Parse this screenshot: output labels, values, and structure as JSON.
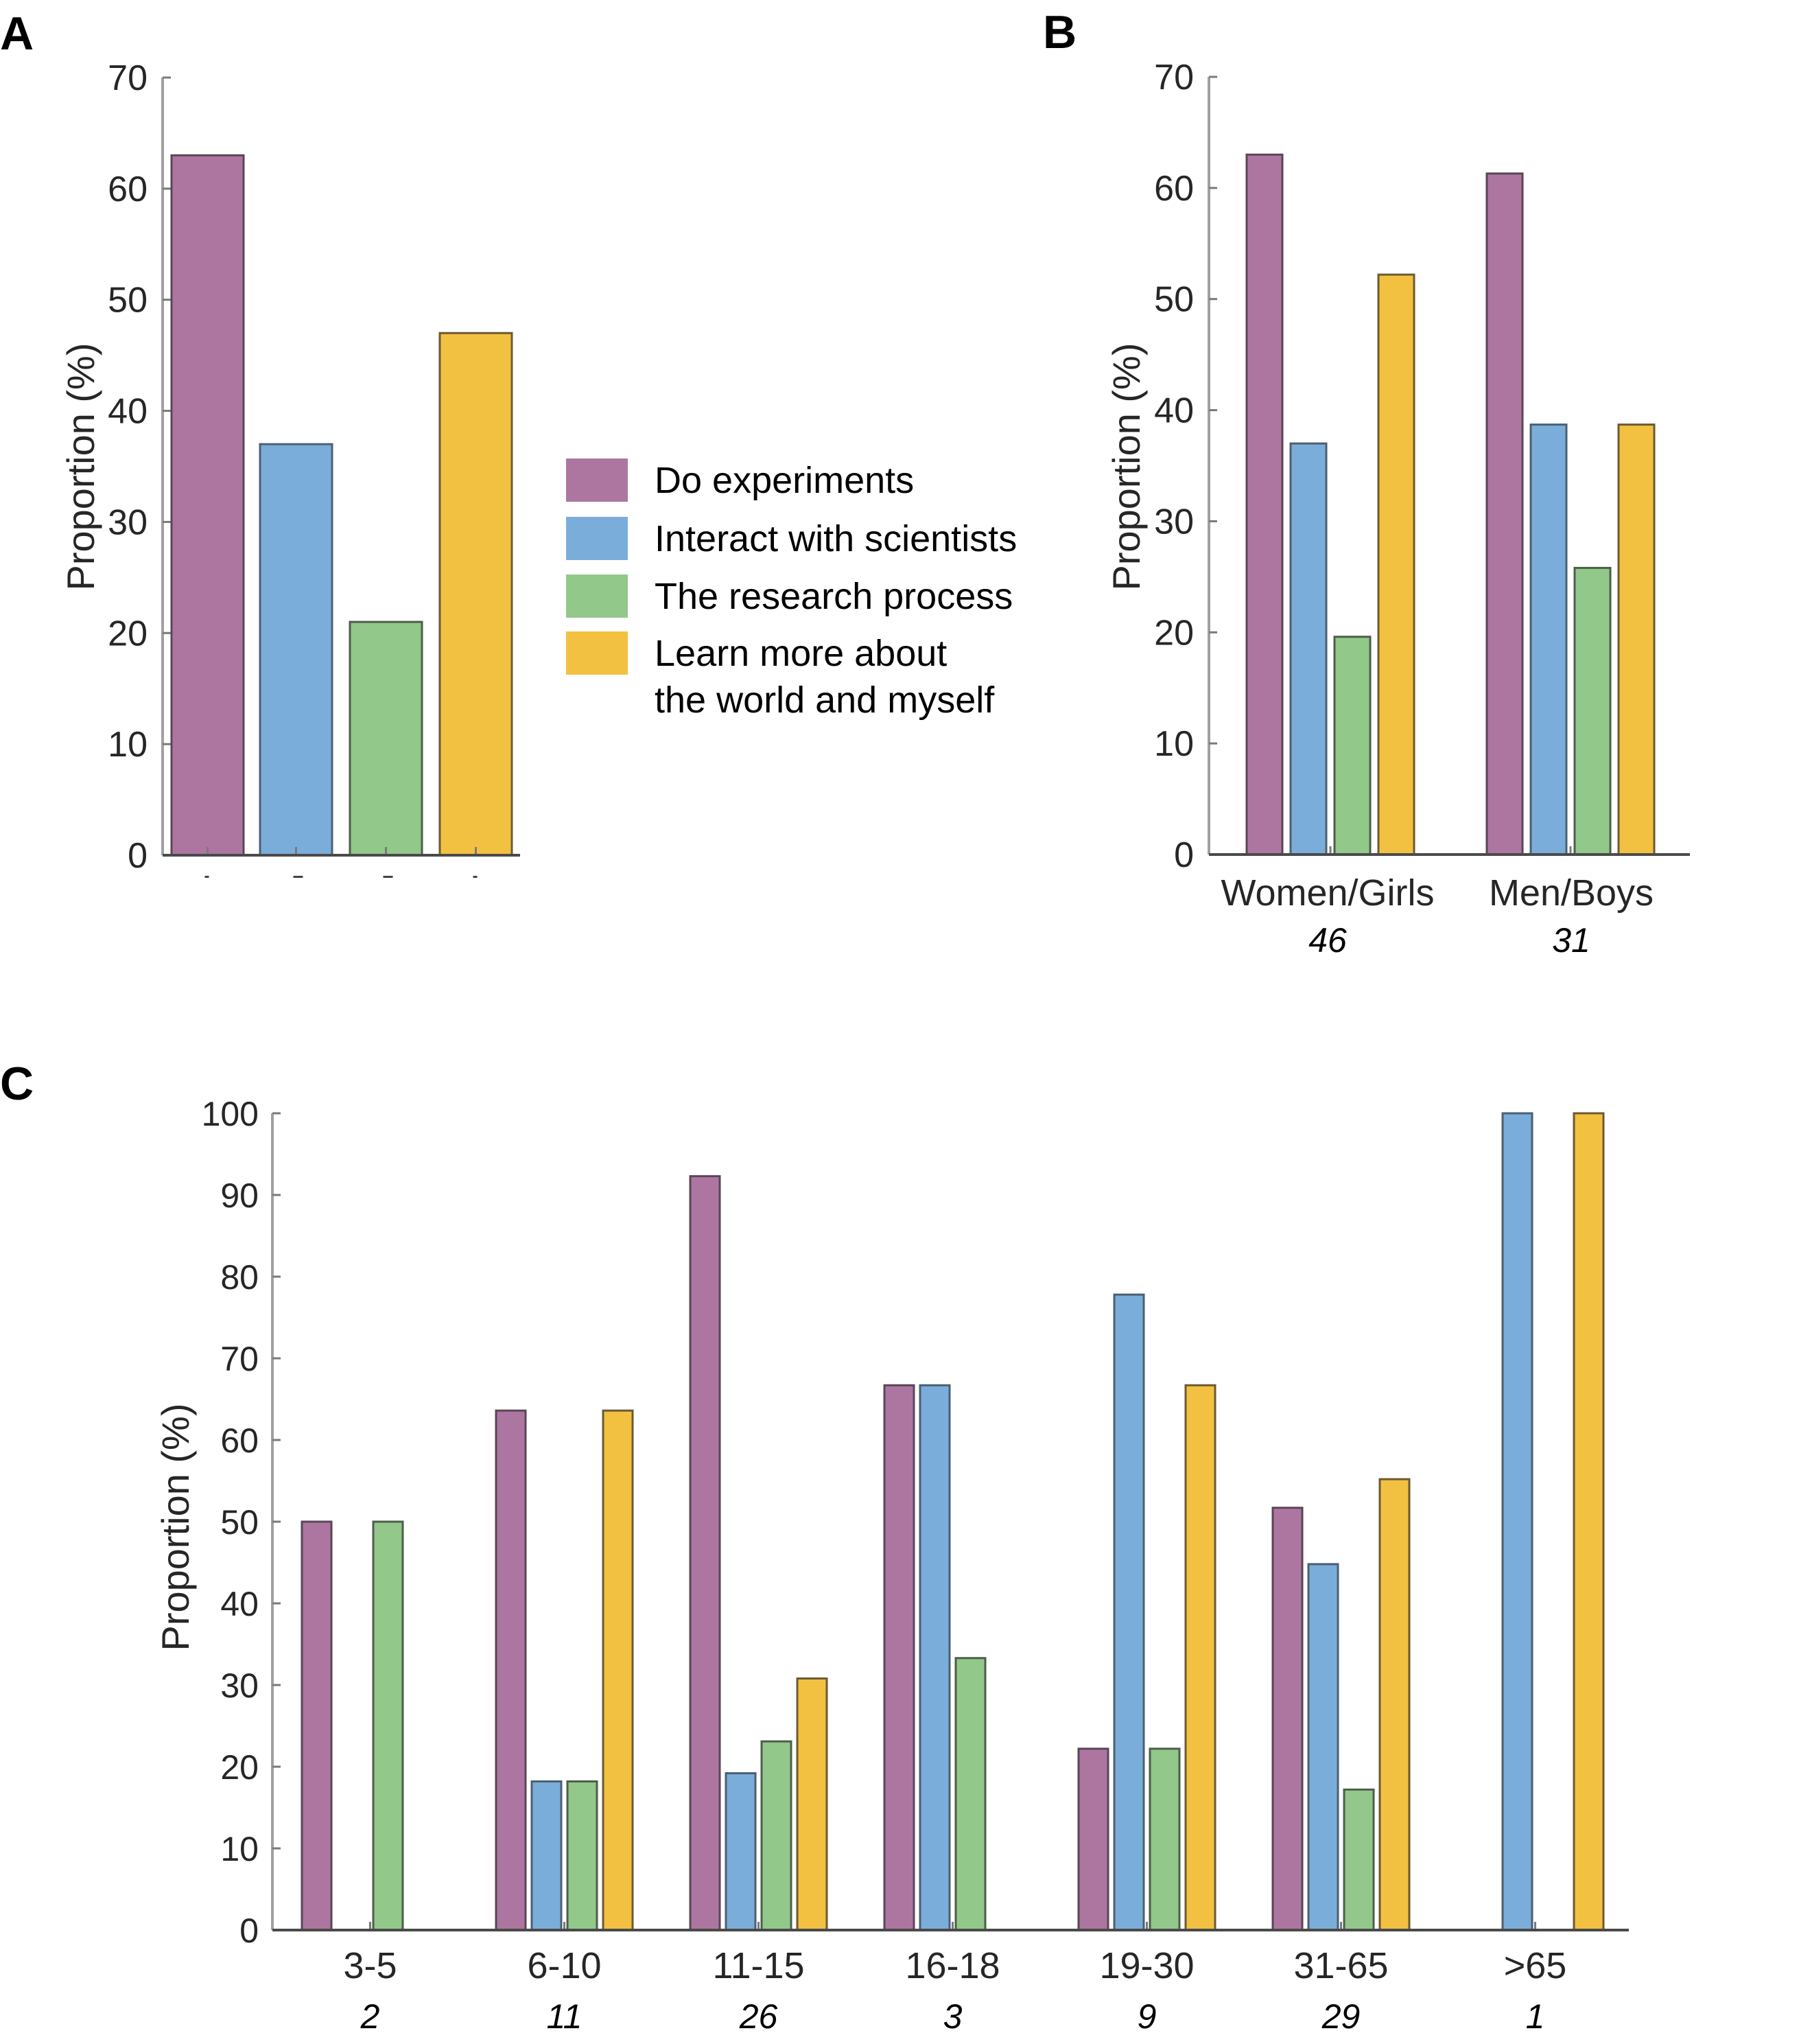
{
  "colors": {
    "do_experiments": "#ad76a1",
    "interact_with_scientists": "#7badda",
    "research_process": "#92c88a",
    "learn_more": "#f3c141",
    "bar_edge_purple": "#5a4656",
    "bar_edge_blue": "#4c5f72",
    "bar_edge_green": "#4d5e4a",
    "bar_edge_yellow": "#6b5a33"
  },
  "legend": {
    "items": [
      {
        "key": "do_experiments",
        "lines": [
          "Do experiments"
        ]
      },
      {
        "key": "interact_with_scientists",
        "lines": [
          "Interact with scientists"
        ]
      },
      {
        "key": "research_process",
        "lines": [
          "The research process"
        ]
      },
      {
        "key": "learn_more",
        "lines": [
          "Learn more about",
          "the world and myself"
        ]
      }
    ]
  },
  "chart_data": [
    {
      "panel": "A",
      "type": "bar",
      "title": "",
      "ylabel": "Proportion (%)",
      "xlabel": "",
      "ylim": [
        0,
        70
      ],
      "yticks": [
        0,
        10,
        20,
        30,
        40,
        50,
        60,
        70
      ],
      "categories": [
        "Do experiments",
        "Interact with scientists",
        "The research process",
        "Learn more about the world and myself"
      ],
      "values": [
        63,
        37,
        21,
        47
      ],
      "series_keys": [
        "do_experiments",
        "interact_with_scientists",
        "research_process",
        "learn_more"
      ],
      "grid": false,
      "legend": "right"
    },
    {
      "panel": "B",
      "type": "bar",
      "title": "",
      "ylabel": "Proportion (%)",
      "xlabel": "",
      "ylim": [
        0,
        70
      ],
      "yticks": [
        0,
        10,
        20,
        30,
        40,
        50,
        60,
        70
      ],
      "categories": [
        "Women/Girls",
        "Men/Boys"
      ],
      "sample_sizes": [
        "46",
        "31"
      ],
      "series": [
        {
          "name": "Do experiments",
          "key": "do_experiments",
          "values": [
            63.0,
            61.3
          ]
        },
        {
          "name": "Interact with scientists",
          "key": "interact_with_scientists",
          "values": [
            37.0,
            38.7
          ]
        },
        {
          "name": "The research process",
          "key": "research_process",
          "values": [
            19.6,
            25.8
          ]
        },
        {
          "name": "Learn more about the world and myself",
          "key": "learn_more",
          "values": [
            52.2,
            38.7
          ]
        }
      ],
      "grid": false
    },
    {
      "panel": "C",
      "type": "bar",
      "title": "",
      "ylabel": "Proportion (%)",
      "xlabel": "",
      "ylim": [
        0,
        100
      ],
      "yticks": [
        0,
        10,
        20,
        30,
        40,
        50,
        60,
        70,
        80,
        90,
        100
      ],
      "categories": [
        "3-5",
        "6-10",
        "11-15",
        "16-18",
        "19-30",
        "31-65",
        ">65"
      ],
      "sample_sizes": [
        "2",
        "11",
        "26",
        "3",
        "9",
        "29",
        "1"
      ],
      "series": [
        {
          "name": "Do experiments",
          "key": "do_experiments",
          "values": [
            50,
            63.6,
            92.3,
            66.7,
            22.2,
            51.7,
            0
          ]
        },
        {
          "name": "Interact with scientists",
          "key": "interact_with_scientists",
          "values": [
            0,
            18.2,
            19.2,
            66.7,
            77.8,
            44.8,
            100
          ]
        },
        {
          "name": "The research process",
          "key": "research_process",
          "values": [
            50,
            18.2,
            23.1,
            33.3,
            22.2,
            17.2,
            0
          ]
        },
        {
          "name": "Learn more about the world and myself",
          "key": "learn_more",
          "values": [
            0,
            63.6,
            30.8,
            0,
            66.7,
            55.2,
            100
          ]
        }
      ],
      "grid": false
    }
  ]
}
